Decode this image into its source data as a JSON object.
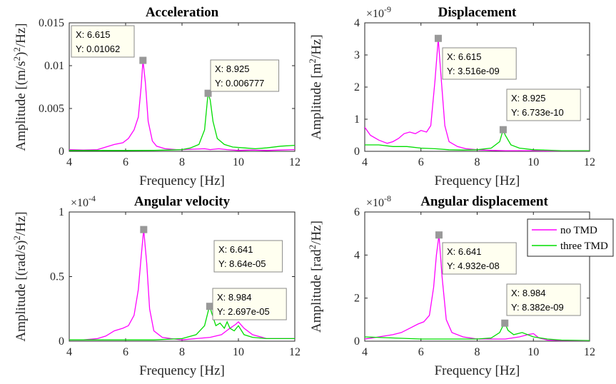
{
  "colors": {
    "no_tmd": "#ff00ff",
    "three_tmd": "#00dd00",
    "marker": "#999999",
    "tip_bg": "#fffff0"
  },
  "legend": {
    "placement": "top-right of bottom-right panel",
    "entries": [
      "no TMD",
      "three TMD"
    ]
  },
  "chart_data": [
    {
      "type": "line",
      "title": "Acceleration",
      "xlabel": "Frequency [Hz]",
      "ylabel": "Amplitude [(m/s$^2$)$^2$/Hz]",
      "ylabel_parts": {
        "pre": "Amplitude [(m/s",
        "sup1": "2",
        "mid": ")",
        "sup2": "2",
        "post": "/Hz]"
      },
      "exponent": "",
      "xlim": [
        4,
        12
      ],
      "ylim": [
        0,
        0.015
      ],
      "xticks": [
        "4",
        "6",
        "8",
        "10",
        "12"
      ],
      "yticks": [
        "0",
        "0.005",
        "0.01",
        "0.015"
      ],
      "ytick_values": [
        0,
        0.005,
        0.01,
        0.015
      ],
      "grid": false,
      "datatips": [
        {
          "series": "no TMD",
          "x": 6.615,
          "y": 0.01062,
          "x_text": "X: 6.615",
          "y_text": "Y: 0.01062"
        },
        {
          "series": "three TMD",
          "x": 8.925,
          "y": 0.006777,
          "x_text": "X: 8.925",
          "y_text": "Y: 0.006777"
        }
      ],
      "series": [
        {
          "name": "no TMD",
          "x": [
            4.0,
            4.5,
            5.0,
            5.3,
            5.6,
            5.9,
            6.1,
            6.3,
            6.45,
            6.55,
            6.615,
            6.7,
            6.8,
            6.95,
            7.1,
            7.4,
            7.8,
            8.0,
            8.4,
            8.8,
            9.0,
            9.3,
            9.6,
            10.0,
            10.5,
            11.0,
            11.5,
            12.0
          ],
          "y": [
            0.0002,
            0.00015,
            0.0002,
            0.0005,
            0.0008,
            0.001,
            0.0015,
            0.0025,
            0.004,
            0.0075,
            0.01062,
            0.008,
            0.0035,
            0.0012,
            0.0006,
            0.0003,
            0.0002,
            0.0002,
            0.00025,
            0.0003,
            0.0002,
            0.0003,
            0.0002,
            0.0001,
            0.00015,
            0.0001,
            0.00015,
            0.0002
          ]
        },
        {
          "name": "three TMD",
          "x": [
            4.0,
            5.0,
            6.0,
            7.0,
            7.5,
            8.0,
            8.3,
            8.6,
            8.8,
            8.9,
            8.925,
            9.0,
            9.1,
            9.25,
            9.5,
            9.8,
            10.2,
            10.6,
            11.0,
            11.5,
            12.0
          ],
          "y": [
            0.0001,
            0.0001,
            0.0001,
            0.00012,
            0.00015,
            0.0002,
            0.0004,
            0.0008,
            0.0025,
            0.006,
            0.006777,
            0.006,
            0.0035,
            0.0015,
            0.0008,
            0.0005,
            0.0004,
            0.0003,
            0.0004,
            0.0006,
            0.0007
          ]
        }
      ]
    },
    {
      "type": "line",
      "title": "Displacement",
      "xlabel": "Frequency [Hz]",
      "ylabel": "Amplitude [m$^2$/Hz]",
      "ylabel_parts": {
        "pre": "Amplitude [m",
        "sup1": "2",
        "mid": "",
        "sup2": "",
        "post": "/Hz]"
      },
      "exponent": "-9",
      "xlim": [
        4,
        12
      ],
      "ylim": [
        0,
        4
      ],
      "xticks": [
        "4",
        "6",
        "8",
        "10",
        "12"
      ],
      "yticks": [
        "0",
        "1",
        "2",
        "3",
        "4"
      ],
      "ytick_values": [
        0,
        1,
        2,
        3,
        4
      ],
      "grid": false,
      "datatips": [
        {
          "series": "no TMD",
          "x": 6.615,
          "y": 3.516,
          "x_text": "X: 6.615",
          "y_text": "Y: 3.516e-09"
        },
        {
          "series": "three TMD",
          "x": 8.925,
          "y": 0.6733,
          "x_text": "X: 8.925",
          "y_text": "Y: 6.733e-10"
        }
      ],
      "series": [
        {
          "name": "no TMD",
          "x": [
            4.0,
            4.2,
            4.5,
            4.8,
            5.0,
            5.2,
            5.4,
            5.6,
            5.8,
            6.0,
            6.2,
            6.35,
            6.5,
            6.615,
            6.7,
            6.85,
            7.0,
            7.3,
            7.6,
            8.0,
            8.5,
            9.0,
            10.0,
            11.0,
            12.0
          ],
          "y": [
            0.75,
            0.5,
            0.35,
            0.25,
            0.3,
            0.4,
            0.55,
            0.6,
            0.55,
            0.65,
            0.6,
            0.8,
            2.2,
            3.516,
            2.5,
            0.8,
            0.3,
            0.15,
            0.08,
            0.05,
            0.03,
            0.02,
            0.02,
            0.01,
            0.01
          ]
        },
        {
          "name": "three TMD",
          "x": [
            4.0,
            4.5,
            5.0,
            5.5,
            6.0,
            6.5,
            7.0,
            7.5,
            8.0,
            8.5,
            8.8,
            8.925,
            9.0,
            9.2,
            9.5,
            10.0,
            11.0,
            12.0
          ],
          "y": [
            0.2,
            0.2,
            0.15,
            0.15,
            0.1,
            0.08,
            0.05,
            0.04,
            0.05,
            0.1,
            0.3,
            0.6733,
            0.5,
            0.2,
            0.1,
            0.05,
            0.02,
            0.02
          ]
        }
      ]
    },
    {
      "type": "line",
      "title": "Angular velocity",
      "xlabel": "Frequency [Hz]",
      "ylabel": "Amplitude [(rad/s)$^2$/Hz]",
      "ylabel_parts": {
        "pre": "Amplitude [(rad/s)",
        "sup1": "2",
        "mid": "",
        "sup2": "",
        "post": "/Hz]"
      },
      "exponent": "-4",
      "xlim": [
        4,
        12
      ],
      "ylim": [
        0,
        1
      ],
      "xticks": [
        "4",
        "6",
        "8",
        "10",
        "12"
      ],
      "yticks": [
        "0",
        "0.5",
        "1"
      ],
      "ytick_values": [
        0,
        0.5,
        1
      ],
      "grid": false,
      "datatips": [
        {
          "series": "no TMD",
          "x": 6.641,
          "y": 0.864,
          "x_text": "X: 6.641",
          "y_text": "Y: 8.64e-05"
        },
        {
          "series": "three TMD",
          "x": 8.984,
          "y": 0.2697,
          "x_text": "X: 8.984",
          "y_text": "Y: 2.697e-05"
        }
      ],
      "series": [
        {
          "name": "no TMD",
          "x": [
            4.0,
            4.5,
            5.0,
            5.3,
            5.6,
            5.9,
            6.1,
            6.3,
            6.45,
            6.55,
            6.641,
            6.75,
            6.85,
            7.0,
            7.3,
            7.6,
            8.0,
            8.5,
            9.0,
            9.4,
            9.7,
            9.9,
            10.0,
            10.2,
            10.5,
            11.0,
            11.5,
            12.0
          ],
          "y": [
            0.01,
            0.01,
            0.02,
            0.04,
            0.08,
            0.1,
            0.12,
            0.2,
            0.4,
            0.65,
            0.864,
            0.6,
            0.25,
            0.08,
            0.03,
            0.02,
            0.01,
            0.02,
            0.03,
            0.05,
            0.1,
            0.13,
            0.15,
            0.1,
            0.05,
            0.02,
            0.02,
            0.02
          ]
        },
        {
          "name": "three TMD",
          "x": [
            4.0,
            5.0,
            6.0,
            7.0,
            8.0,
            8.5,
            8.8,
            8.95,
            8.984,
            9.05,
            9.2,
            9.35,
            9.5,
            9.6,
            9.7,
            9.85,
            10.0,
            10.2,
            10.5,
            11.0,
            12.0
          ],
          "y": [
            0.01,
            0.01,
            0.01,
            0.01,
            0.02,
            0.05,
            0.12,
            0.25,
            0.2697,
            0.22,
            0.12,
            0.14,
            0.1,
            0.15,
            0.1,
            0.08,
            0.12,
            0.05,
            0.03,
            0.02,
            0.02
          ]
        }
      ]
    },
    {
      "type": "line",
      "title": "Angular displacement",
      "xlabel": "Frequency [Hz]",
      "ylabel": "Amplitude [rad$^2$/Hz]",
      "ylabel_parts": {
        "pre": "Amplitude [rad",
        "sup1": "2",
        "mid": "",
        "sup2": "",
        "post": "/Hz]"
      },
      "exponent": "-8",
      "xlim": [
        4,
        12
      ],
      "ylim": [
        0,
        6
      ],
      "xticks": [
        "4",
        "6",
        "8",
        "10",
        "12"
      ],
      "yticks": [
        "0",
        "2",
        "4",
        "6"
      ],
      "ytick_values": [
        0,
        2,
        4,
        6
      ],
      "grid": false,
      "datatips": [
        {
          "series": "no TMD",
          "x": 6.641,
          "y": 4.932,
          "x_text": "X: 6.641",
          "y_text": "Y: 4.932e-08"
        },
        {
          "series": "three TMD",
          "x": 8.984,
          "y": 0.8382,
          "x_text": "X: 8.984",
          "y_text": "Y: 8.382e-09"
        }
      ],
      "series": [
        {
          "name": "no TMD",
          "x": [
            4.0,
            4.5,
            5.0,
            5.3,
            5.6,
            5.9,
            6.1,
            6.3,
            6.45,
            6.55,
            6.641,
            6.75,
            6.9,
            7.1,
            7.5,
            8.0,
            8.5,
            9.0,
            9.5,
            9.8,
            10.0,
            10.2,
            10.5,
            11.0,
            12.0
          ],
          "y": [
            0.1,
            0.2,
            0.3,
            0.4,
            0.6,
            0.8,
            0.9,
            1.2,
            2.5,
            4.0,
            4.932,
            3.0,
            1.0,
            0.4,
            0.2,
            0.1,
            0.1,
            0.1,
            0.2,
            0.3,
            0.35,
            0.15,
            0.05,
            0.03,
            0.02
          ]
        },
        {
          "name": "three TMD",
          "x": [
            4.0,
            5.0,
            6.0,
            7.0,
            8.0,
            8.5,
            8.8,
            8.95,
            8.984,
            9.1,
            9.3,
            9.6,
            10.0,
            10.5,
            11.0,
            12.0
          ],
          "y": [
            0.2,
            0.15,
            0.1,
            0.1,
            0.1,
            0.15,
            0.4,
            0.8,
            0.8382,
            0.5,
            0.3,
            0.4,
            0.2,
            0.1,
            0.05,
            0.03
          ]
        }
      ]
    }
  ]
}
